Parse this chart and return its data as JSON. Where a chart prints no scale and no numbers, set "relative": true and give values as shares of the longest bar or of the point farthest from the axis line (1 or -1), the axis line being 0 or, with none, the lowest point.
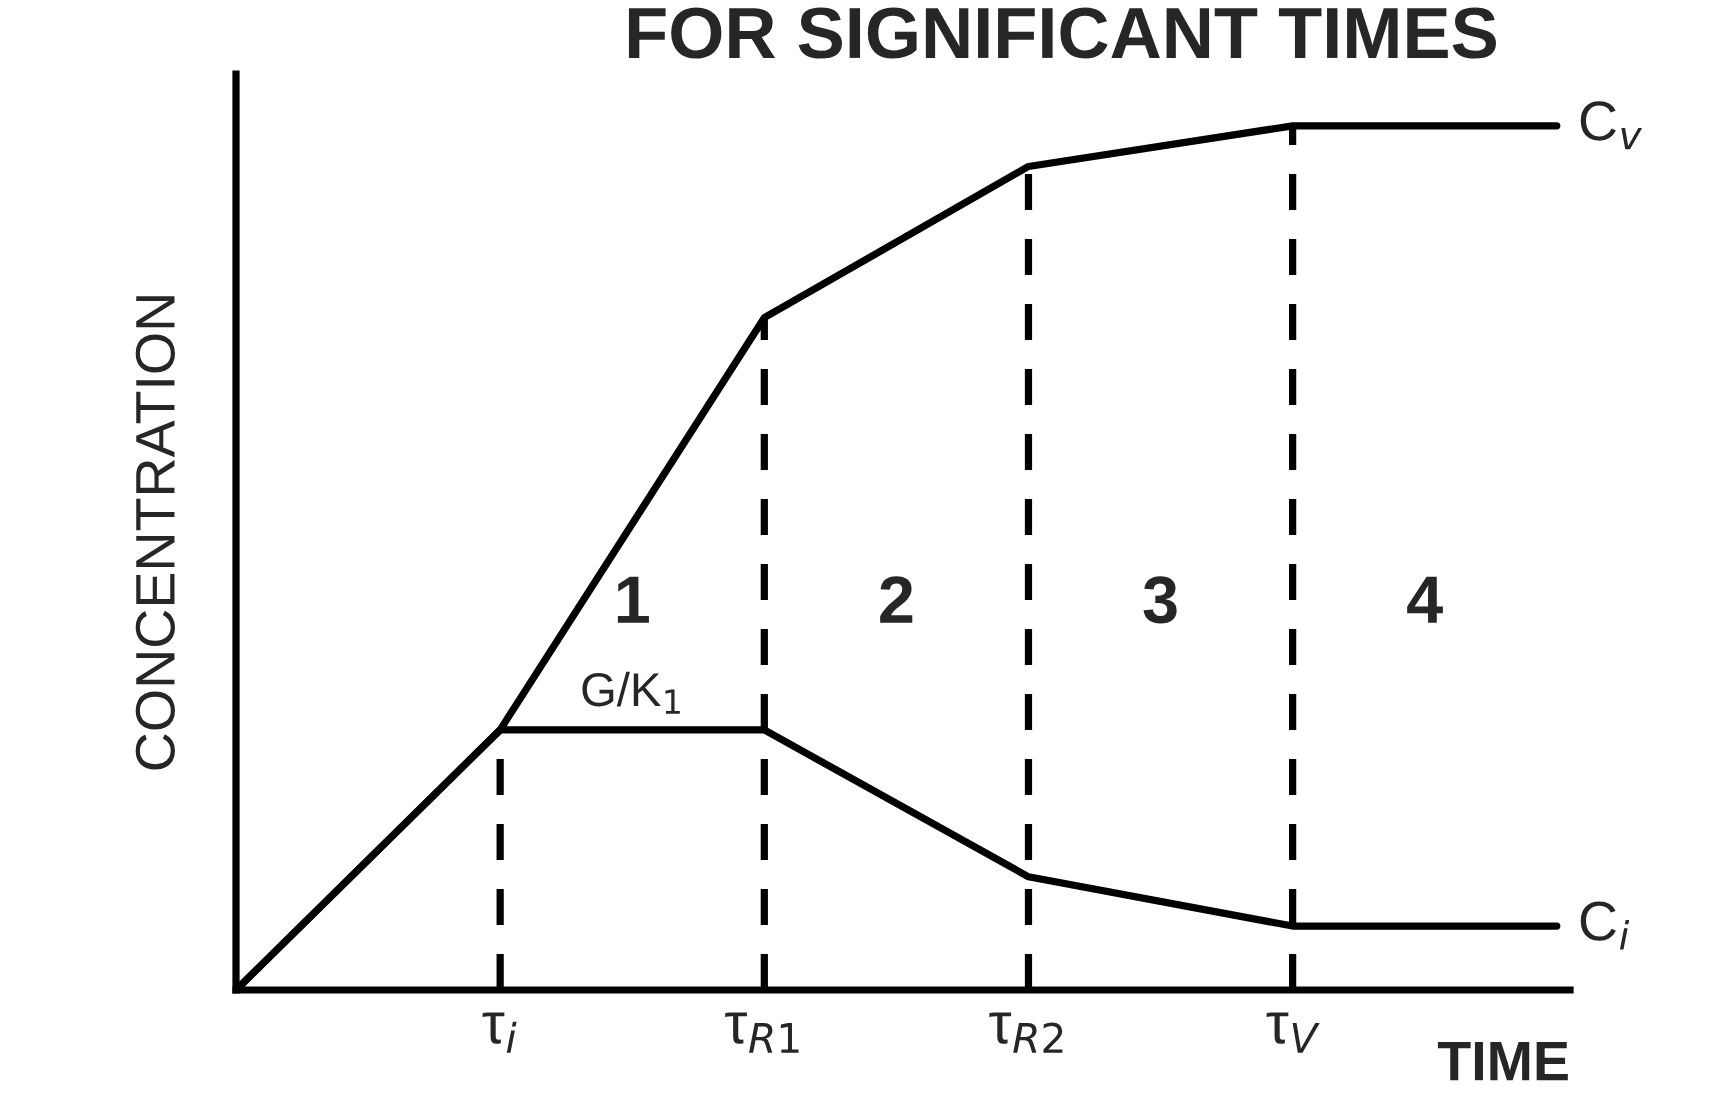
{
  "chart_data": {
    "type": "line",
    "title": "FOR SIGNIFICANT TIMES",
    "xlabel": "TIME",
    "ylabel": "CONCENTRATION",
    "relative": true,
    "categories": [
      null,
      "τ$_{i}$",
      "τ$_{R1}$",
      "τ$_{R2}$",
      "τ$_{V}$",
      null
    ],
    "series": [
      {
        "name": "C$_{v}$",
        "color": "#000000",
        "values": [
          0,
          0.301,
          0.778,
          0.953,
          1,
          1
        ]
      },
      {
        "name": "C$_{i}$",
        "color": "#000000",
        "values": [
          0,
          0.301,
          0.301,
          0.131,
          0.074,
          0.074
        ]
      }
    ],
    "annotations": [
      "1",
      "2",
      "3",
      "4",
      "G/K$_{1}$"
    ],
    "ref_lines": [
      {
        "axis": "x",
        "value": "τ$_{i}$",
        "color": "#000000",
        "line_style": "dashed"
      },
      {
        "axis": "x",
        "value": "τ$_{R1}$",
        "color": "#000000",
        "line_style": "dashed"
      },
      {
        "axis": "x",
        "value": "τ$_{R2}$",
        "color": "#000000",
        "line_style": "dashed"
      },
      {
        "axis": "x",
        "value": "τ$_{V}$",
        "color": "#000000",
        "line_style": "dashed"
      }
    ],
    "line_style": "solid",
    "marker": "none",
    "legend": false
  }
}
